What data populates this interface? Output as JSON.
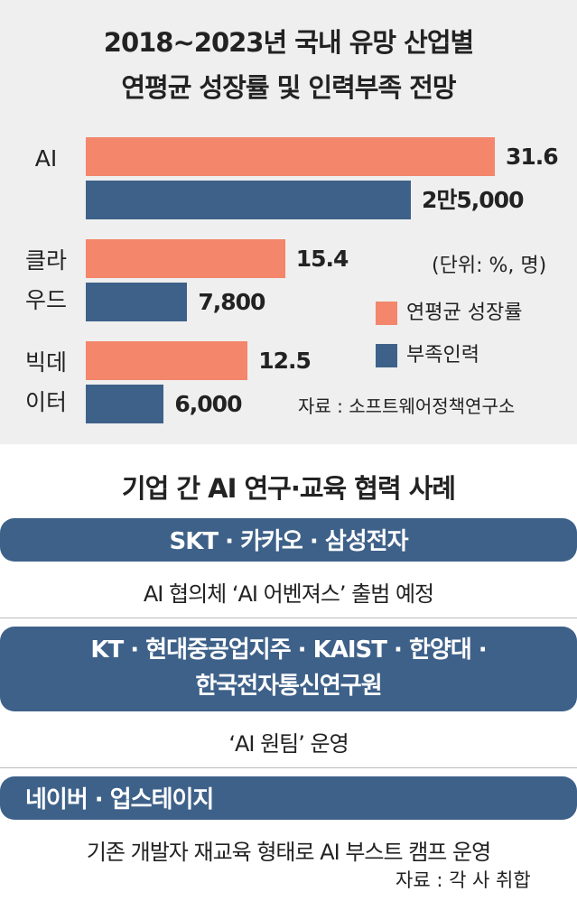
{
  "chart_data": {
    "type": "bar",
    "orientation": "horizontal",
    "title": [
      "2018~2023년 국내 유망 산업별",
      "연평균 성장률 및 인력부족 전망"
    ],
    "categories": [
      "AI",
      "클라우드",
      "빅데이터"
    ],
    "series": [
      {
        "name": "연평균 성장률",
        "color": "#f3866b",
        "values": [
          31.6,
          15.4,
          12.5
        ]
      },
      {
        "name": "부족인력",
        "color": "#3e6189",
        "values": [
          25000,
          7800,
          6000
        ],
        "value_labels": [
          "2만5,000",
          "7,800",
          "6,000"
        ]
      }
    ],
    "unit_note": "(단위: %, 명)",
    "source": "자료 : 소프트웨어정책연구소"
  },
  "cases_section": {
    "heading": "기업 간 AI 연구·교육 협력 사례",
    "cases": [
      {
        "title": [
          "SKT · 카카오 · 삼성전자"
        ],
        "description": "AI 협의체 ‘AI 어벤져스’ 출범 예정"
      },
      {
        "title": [
          "KT · 현대중공업지주 · KAIST · 한양대 ·",
          "한국전자통신연구원"
        ],
        "description": "‘AI 원팀’ 운영"
      },
      {
        "title": [
          "네이버 · 업스테이지"
        ],
        "description": "기존 개발자 재교육 형태로 AI 부스트 캠프 운영"
      }
    ],
    "source": "자료 : 각 사 취합"
  }
}
